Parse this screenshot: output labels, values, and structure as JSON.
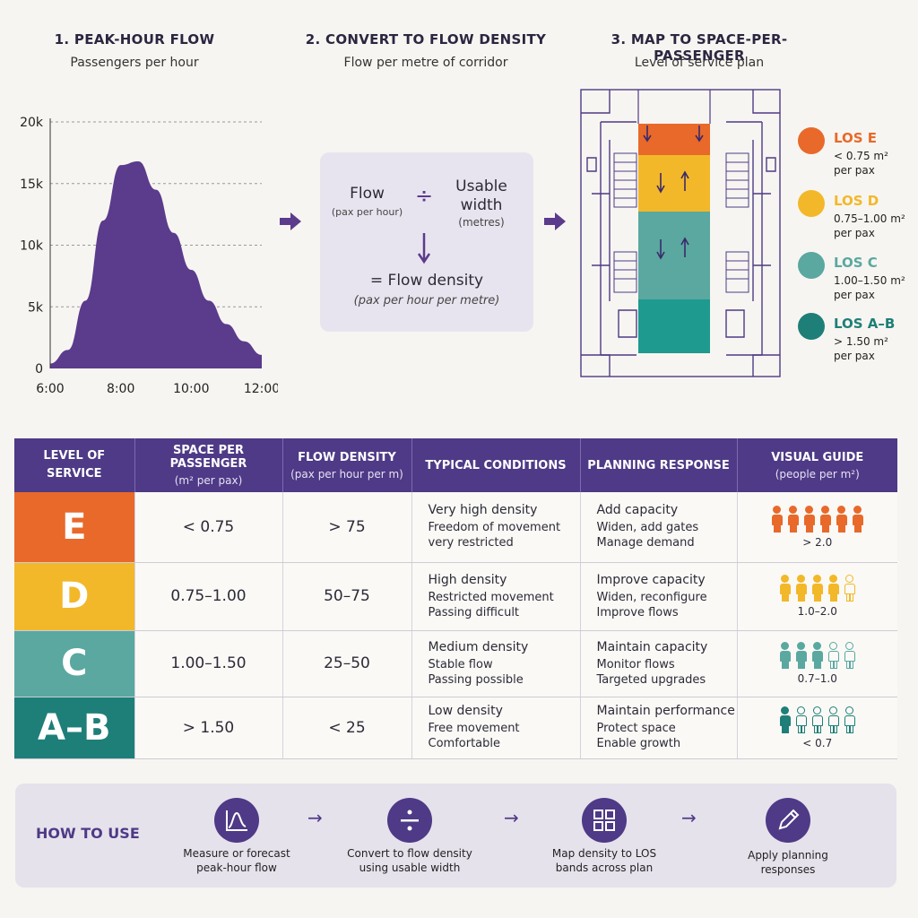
{
  "steps": [
    {
      "title": "1. PEAK-HOUR FLOW",
      "subtitle": "Passengers per hour"
    },
    {
      "title": "2. CONVERT TO FLOW DENSITY",
      "subtitle": "Flow per metre of corridor"
    },
    {
      "title": "3. MAP TO SPACE-PER-PASSENGER",
      "subtitle": "Level of service plan"
    }
  ],
  "chart_data": {
    "type": "area",
    "title": "1. PEAK-HOUR FLOW",
    "subtitle": "Passengers per hour",
    "x": [
      "6:00",
      "6:30",
      "7:00",
      "7:30",
      "8:00",
      "8:30",
      "9:00",
      "9:30",
      "10:00",
      "10:30",
      "11:00",
      "11:30",
      "12:00"
    ],
    "values": [
      400,
      1500,
      5500,
      12000,
      16500,
      16800,
      14500,
      11000,
      8000,
      5500,
      3600,
      2200,
      1100
    ],
    "x_ticks": [
      "6:00",
      "8:00",
      "10:00",
      "12:00"
    ],
    "y_ticks": [
      "0",
      "5k",
      "10k",
      "15k",
      "20k"
    ],
    "ylim": [
      0,
      20000
    ],
    "grid": true,
    "color": "#5b3b8c"
  },
  "formula": {
    "flow_label": "Flow",
    "flow_unit": "(pax per hour)",
    "operator": "÷",
    "width_label": "Usable width",
    "width_unit": "(metres)",
    "result_label": "= Flow density",
    "result_unit": "(pax per hour per metre)"
  },
  "legend": [
    {
      "title": "LOS E",
      "desc": "< 0.75 m² per pax",
      "color": "#e8692a"
    },
    {
      "title": "LOS D",
      "desc": "0.75–1.00 m² per pax",
      "color": "#f2b829"
    },
    {
      "title": "LOS C",
      "desc": "1.00–1.50 m² per pax",
      "color": "#5aa8a0"
    },
    {
      "title": "LOS A–B",
      "desc": "> 1.50 m² per pax",
      "color": "#1e7f78"
    }
  ],
  "table": {
    "headers": [
      {
        "title": "LEVEL OF SERVICE",
        "sub": ""
      },
      {
        "title": "SPACE PER PASSENGER",
        "sub": "(m² per pax)"
      },
      {
        "title": "FLOW DENSITY",
        "sub": "(pax per hour per m)"
      },
      {
        "title": "TYPICAL CONDITIONS",
        "sub": ""
      },
      {
        "title": "PLANNING RESPONSE",
        "sub": ""
      },
      {
        "title": "VISUAL GUIDE",
        "sub": "(people per m²)"
      }
    ],
    "rows": [
      {
        "los": "E",
        "color": "#e8692a",
        "space": "< 0.75",
        "density": "> 75",
        "cond_h": "Very high density",
        "cond_1": "Freedom of movement",
        "cond_2": "very restricted",
        "resp_h": "Add capacity",
        "resp_1": "Widen, add gates",
        "resp_2": "Manage demand",
        "guide": "> 2.0",
        "filled": 6,
        "total": 6
      },
      {
        "los": "D",
        "color": "#f2b829",
        "space": "0.75–1.00",
        "density": "50–75",
        "cond_h": "High density",
        "cond_1": "Restricted movement",
        "cond_2": "Passing difficult",
        "resp_h": "Improve capacity",
        "resp_1": "Widen, reconfigure",
        "resp_2": "Improve flows",
        "guide": "1.0–2.0",
        "filled": 4,
        "total": 5
      },
      {
        "los": "C",
        "color": "#5aa8a0",
        "space": "1.00–1.50",
        "density": "25–50",
        "cond_h": "Medium density",
        "cond_1": "Stable flow",
        "cond_2": "Passing possible",
        "resp_h": "Maintain capacity",
        "resp_1": "Monitor flows",
        "resp_2": "Targeted upgrades",
        "guide": "0.7–1.0",
        "filled": 3,
        "total": 5
      },
      {
        "los": "A–B",
        "color": "#1e7f78",
        "space": "> 1.50",
        "density": "< 25",
        "cond_h": "Low density",
        "cond_1": "Free movement",
        "cond_2": "Comfortable",
        "resp_h": "Maintain performance",
        "resp_1": "Protect space",
        "resp_2": "Enable growth",
        "guide": "< 0.7",
        "filled": 1,
        "total": 5
      }
    ]
  },
  "howto": {
    "title": "HOW TO USE",
    "steps": [
      {
        "icon": "chart-icon",
        "text1": "Measure or forecast",
        "text2": "peak-hour flow"
      },
      {
        "icon": "divide-icon",
        "text1": "Convert to flow density",
        "text2": "using usable width"
      },
      {
        "icon": "grid-icon",
        "text1": "Map density to LOS",
        "text2": "bands across plan"
      },
      {
        "icon": "pencil-icon",
        "text1": "Apply planning",
        "text2": "responses"
      }
    ],
    "arrow": "→"
  }
}
